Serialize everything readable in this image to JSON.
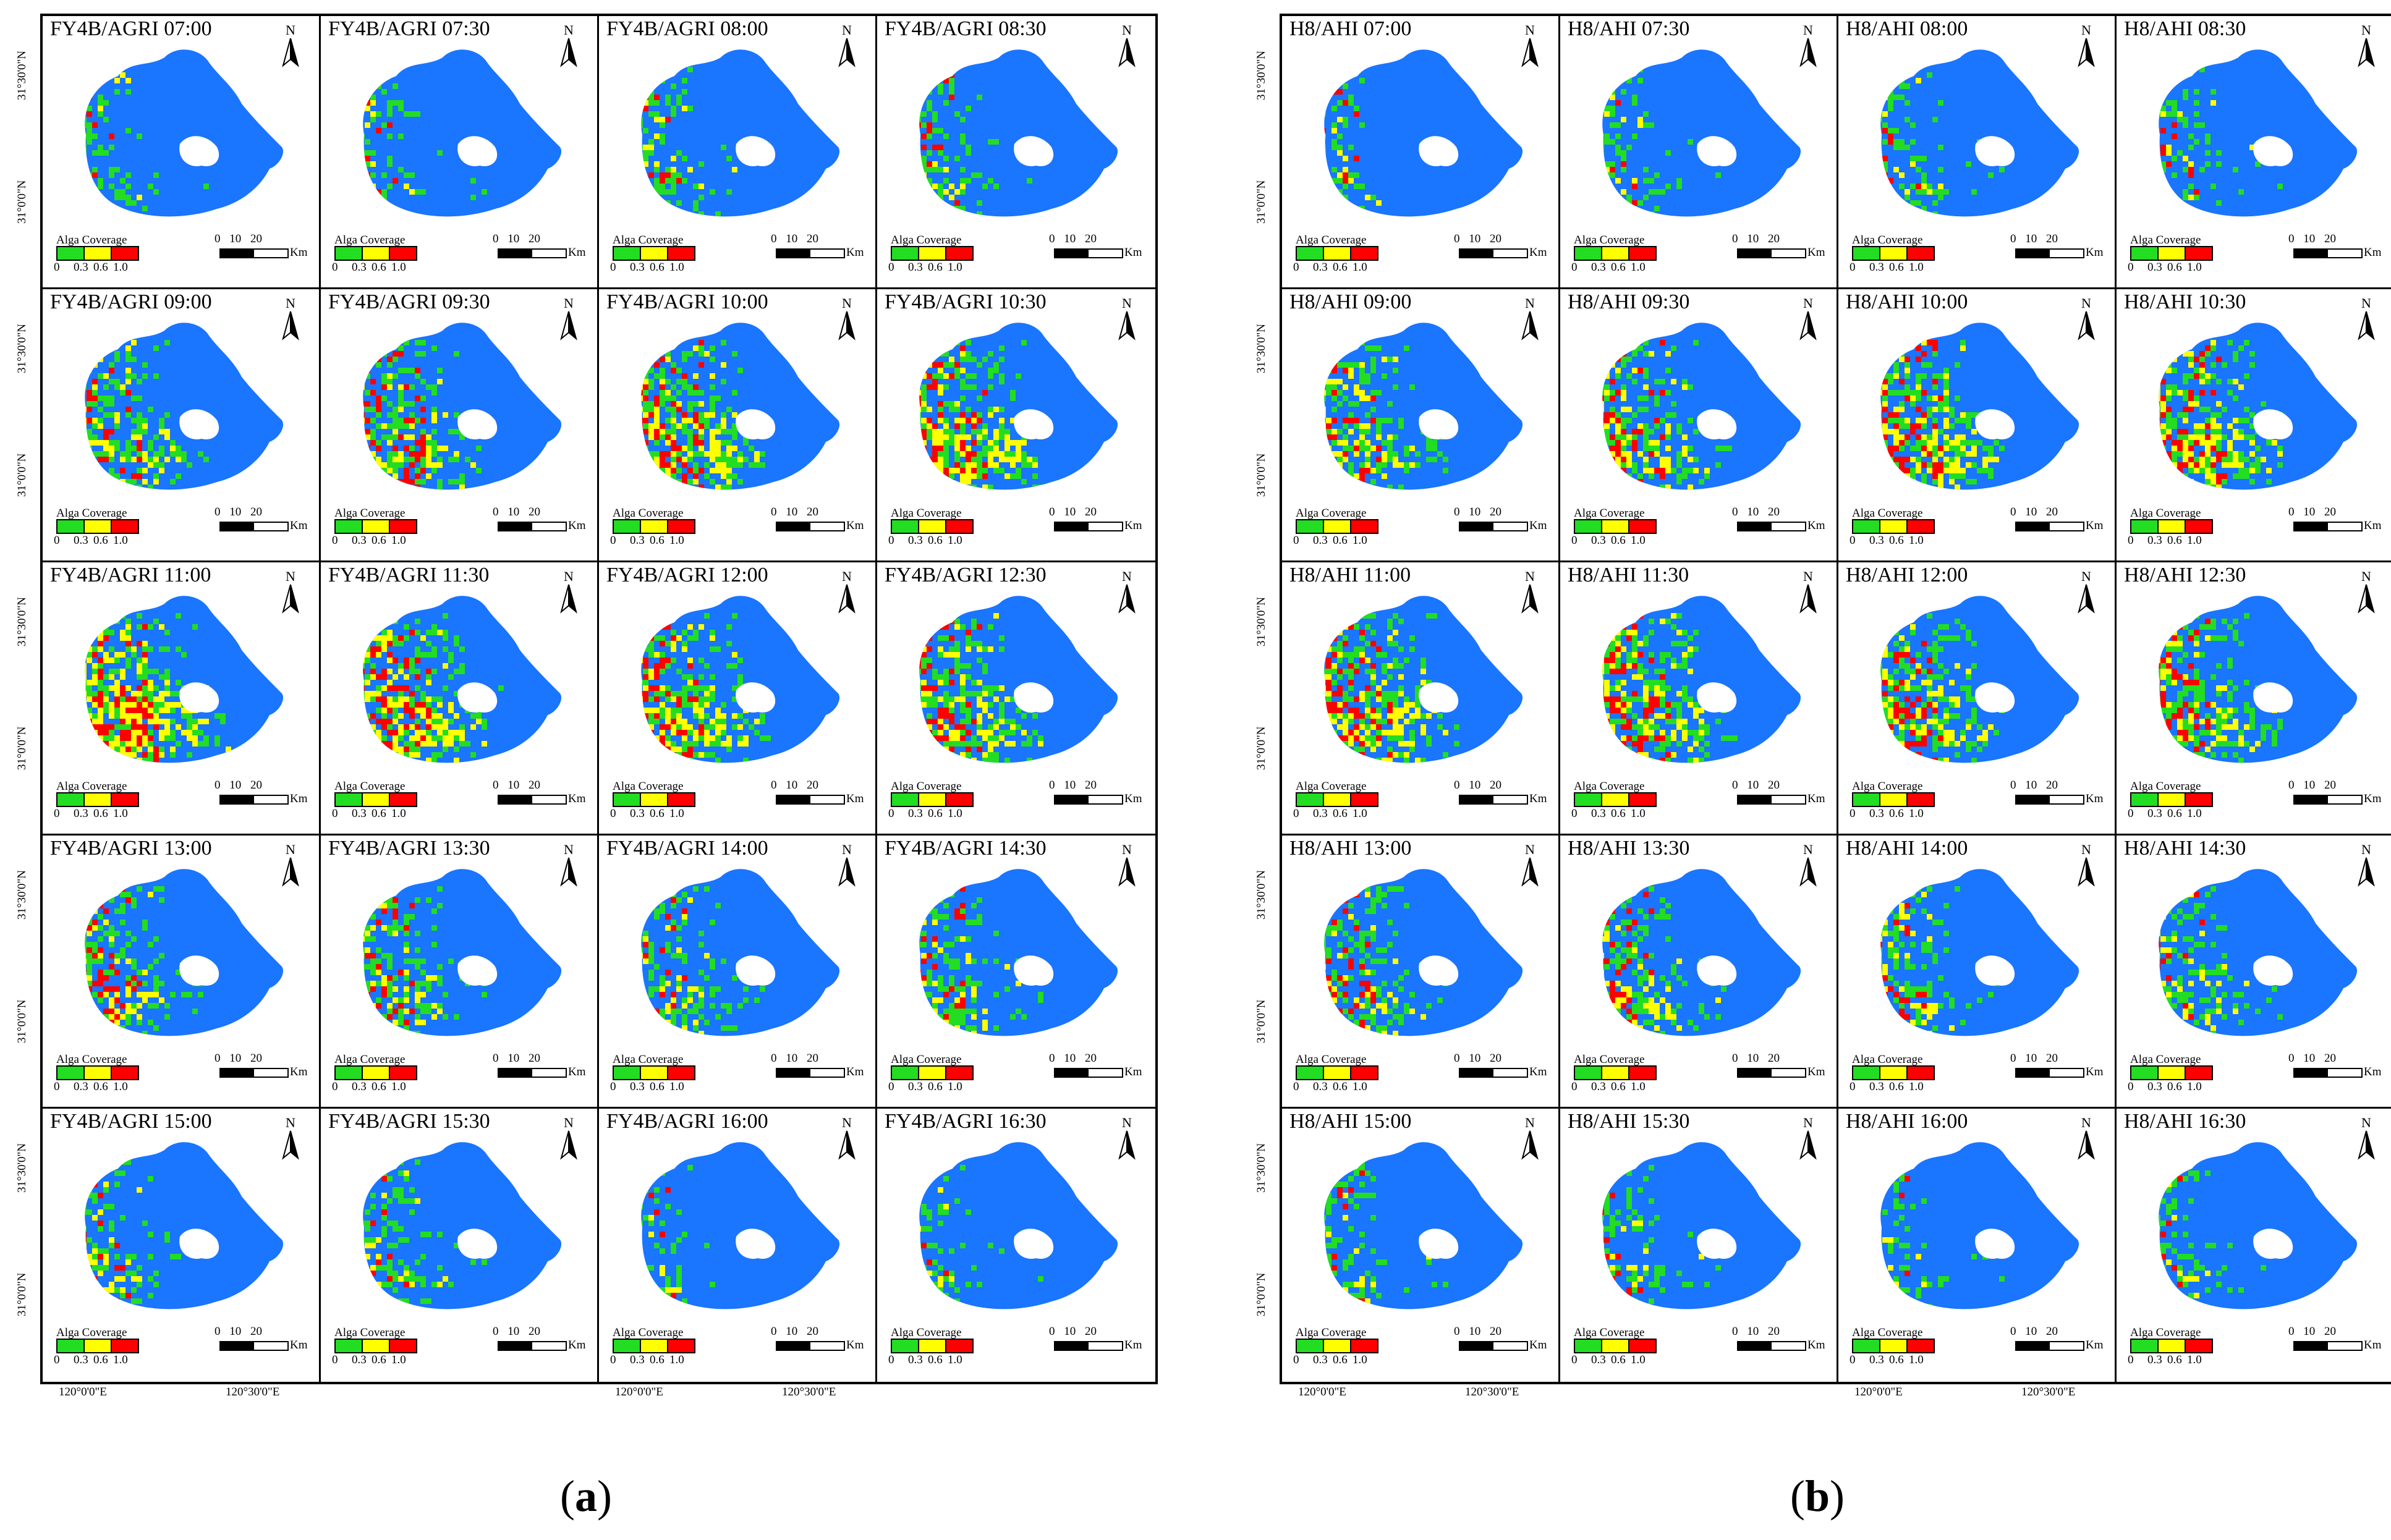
{
  "figure": {
    "colors": {
      "water": "#1a75ff",
      "low": "#22dd22",
      "mid": "#ffff00",
      "high": "#ff0000"
    },
    "legend_title": "Alga Coverage",
    "legend_ticks": [
      "0",
      "0.3",
      "0.6",
      "1.0"
    ],
    "scale_numbers": "0 10 20",
    "scale_unit": "Km",
    "north_label": "N",
    "lat_labels": [
      "31°30'0\"N",
      "31°0'0\"N"
    ],
    "lon_labels": [
      "120°0'0\"E",
      "120°30'0\"E"
    ]
  },
  "panels": [
    {
      "label": "a",
      "cells": [
        {
          "title": "FY4B/AGRI 07:00",
          "bloom": 0.15
        },
        {
          "title": "FY4B/AGRI 07:30",
          "bloom": 0.15
        },
        {
          "title": "FY4B/AGRI 08:00",
          "bloom": 0.18
        },
        {
          "title": "FY4B/AGRI 08:30",
          "bloom": 0.2
        },
        {
          "title": "FY4B/AGRI 09:00",
          "bloom": 0.4
        },
        {
          "title": "FY4B/AGRI 09:30",
          "bloom": 0.45
        },
        {
          "title": "FY4B/AGRI 10:00",
          "bloom": 0.5
        },
        {
          "title": "FY4B/AGRI 10:30",
          "bloom": 0.55
        },
        {
          "title": "FY4B/AGRI 11:00",
          "bloom": 0.6
        },
        {
          "title": "FY4B/AGRI 11:30",
          "bloom": 0.55
        },
        {
          "title": "FY4B/AGRI 12:00",
          "bloom": 0.5
        },
        {
          "title": "FY4B/AGRI 12:30",
          "bloom": 0.45
        },
        {
          "title": "FY4B/AGRI 13:00",
          "bloom": 0.38
        },
        {
          "title": "FY4B/AGRI 13:30",
          "bloom": 0.35
        },
        {
          "title": "FY4B/AGRI 14:00",
          "bloom": 0.3
        },
        {
          "title": "FY4B/AGRI 14:30",
          "bloom": 0.3
        },
        {
          "title": "FY4B/AGRI 15:00",
          "bloom": 0.25
        },
        {
          "title": "FY4B/AGRI 15:30",
          "bloom": 0.25
        },
        {
          "title": "FY4B/AGRI 16:00",
          "bloom": 0.12
        },
        {
          "title": "FY4B/AGRI 16:30",
          "bloom": 0.1
        }
      ]
    },
    {
      "label": "b",
      "cells": [
        {
          "title": "H8/AHI 07:00",
          "bloom": 0.12
        },
        {
          "title": "H8/AHI 07:30",
          "bloom": 0.15
        },
        {
          "title": "H8/AHI 08:00",
          "bloom": 0.18
        },
        {
          "title": "H8/AHI 08:30",
          "bloom": 0.18
        },
        {
          "title": "H8/AHI 09:00",
          "bloom": 0.4
        },
        {
          "title": "H8/AHI 09:30",
          "bloom": 0.45
        },
        {
          "title": "H8/AHI 10:00",
          "bloom": 0.5
        },
        {
          "title": "H8/AHI 10:30",
          "bloom": 0.52
        },
        {
          "title": "H8/AHI 11:00",
          "bloom": 0.55
        },
        {
          "title": "H8/AHI 11:30",
          "bloom": 0.52
        },
        {
          "title": "H8/AHI 12:00",
          "bloom": 0.48
        },
        {
          "title": "H8/AHI 12:30",
          "bloom": 0.42
        },
        {
          "title": "H8/AHI 13:00",
          "bloom": 0.35
        },
        {
          "title": "H8/AHI 13:30",
          "bloom": 0.33
        },
        {
          "title": "H8/AHI 14:00",
          "bloom": 0.3
        },
        {
          "title": "H8/AHI 14:30",
          "bloom": 0.28
        },
        {
          "title": "H8/AHI 15:00",
          "bloom": 0.2
        },
        {
          "title": "H8/AHI 15:30",
          "bloom": 0.2
        },
        {
          "title": "H8/AHI 16:00",
          "bloom": 0.12
        },
        {
          "title": "H8/AHI 16:30",
          "bloom": 0.1
        }
      ]
    }
  ]
}
